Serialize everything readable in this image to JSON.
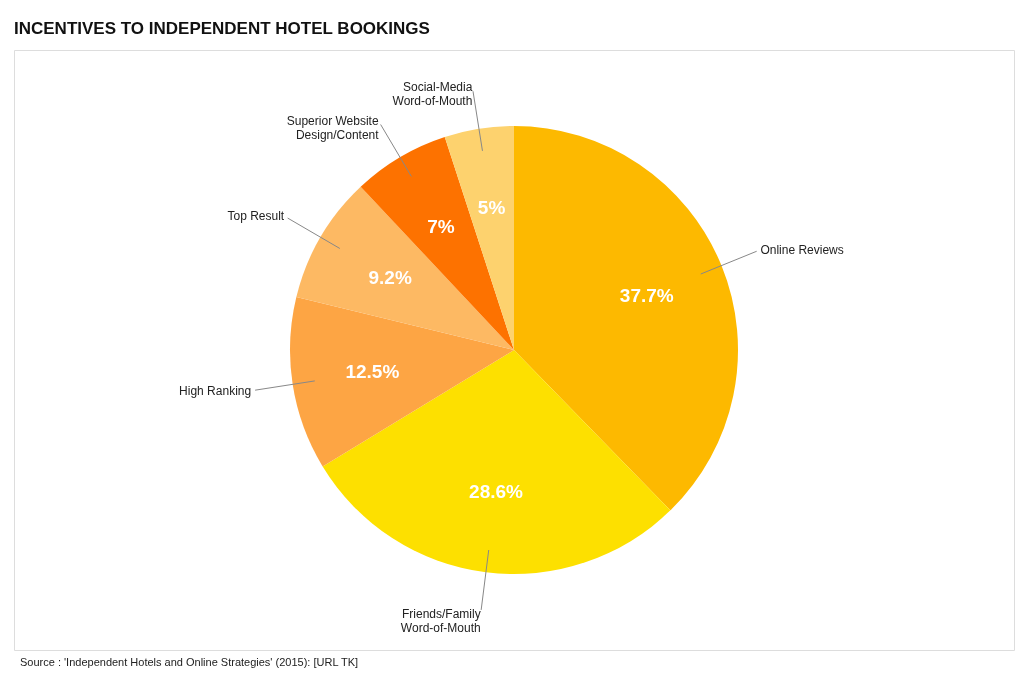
{
  "chart_data": {
    "type": "pie",
    "title": "INCENTIVES TO INDEPENDENT HOTEL BOOKINGS",
    "categories": [
      "Online Reviews",
      "Friends/Family\nWord-of-Mouth",
      "High Ranking",
      "Top Result",
      "Superior Website\nDesign/Content",
      "Social-Media\nWord-of-Mouth"
    ],
    "values": [
      37.7,
      28.6,
      12.5,
      9.2,
      7,
      5
    ],
    "colors": [
      "#fdb900",
      "#fde000",
      "#fda544",
      "#fdb963",
      "#fd7200",
      "#fdd26e"
    ],
    "value_labels": [
      "37.7%",
      "28.6%",
      "12.5%",
      "9.2%",
      "7%",
      "5%"
    ],
    "legend": false,
    "annotations": [
      "Source : 'Independent Hotels and Online Strategies' (2015): [URL TK]"
    ]
  }
}
